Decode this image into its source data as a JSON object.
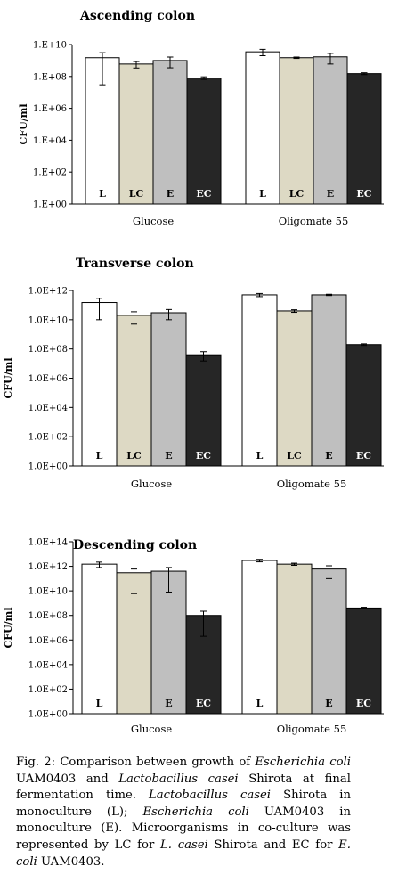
{
  "colors": {
    "L": "#ffffff",
    "LC": "#ddd9c4",
    "E": "#bfbfbf",
    "EC": "#262626",
    "edge": "#000000"
  },
  "chart_data": [
    {
      "type": "bar",
      "title": "Ascending colon",
      "ylabel": "CFU/ml",
      "yscale": "log",
      "ylim": [
        1,
        10000000000.0
      ],
      "yticks": [
        "1.E+00",
        "1.E+02",
        "1.E+04",
        "1.E+06",
        "1.E+08",
        "1.E+10"
      ],
      "categories": [
        "Glucose",
        "Oligomate 55"
      ],
      "series": [
        {
          "name": "L",
          "values": [
            1500000000.0,
            3500000000.0
          ],
          "err": [
            1600000000.0,
            1500000000.0
          ]
        },
        {
          "name": "LC",
          "values": [
            600000000.0,
            1500000000.0
          ],
          "err": [
            260000000.0,
            150000000.0
          ]
        },
        {
          "name": "E",
          "values": [
            1000000000.0,
            1700000000.0
          ],
          "err": [
            650000000.0,
            1100000000.0
          ]
        },
        {
          "name": "EC",
          "values": [
            80000000.0,
            150000000.0
          ],
          "err": [
            15000000.0,
            20000000.0
          ]
        }
      ]
    },
    {
      "type": "bar",
      "title": "Transverse colon",
      "ylabel": "CFU/ml",
      "yscale": "log",
      "ylim": [
        1,
        1000000000000.0
      ],
      "yticks": [
        "1.0E+00",
        "1.0E+02",
        "1.0E+04",
        "1.0E+06",
        "1.0E+08",
        "1.0E+10",
        "1.0E+12"
      ],
      "categories": [
        "Glucose",
        "Oligomate 55"
      ],
      "series": [
        {
          "name": "L",
          "values": [
            150000000000.0,
            500000000000.0
          ],
          "err": [
            140000000000.0,
            120000000000.0
          ]
        },
        {
          "name": "LC",
          "values": [
            20000000000.0,
            40000000000.0
          ],
          "err": [
            15000000000.0,
            8000000000.0
          ]
        },
        {
          "name": "E",
          "values": [
            30000000000.0,
            500000000000.0
          ],
          "err": [
            20000000000.0,
            50000000000.0
          ]
        },
        {
          "name": "EC",
          "values": [
            40000000.0,
            200000000.0
          ],
          "err": [
            25000000.0,
            25000000.0
          ]
        }
      ]
    },
    {
      "type": "bar",
      "title": "Descending colon",
      "ylabel": "CFU/ml",
      "yscale": "log",
      "ylim": [
        1,
        100000000000000.0
      ],
      "yticks": [
        "1.0E+00",
        "1.0E+02",
        "1.0E+04",
        "1.0E+06",
        "1.0E+08",
        "1.0E+10",
        "1.0E+12",
        "1.0E+14"
      ],
      "categories": [
        "Glucose",
        "Oligomate 55"
      ],
      "series": [
        {
          "name": "L",
          "values": [
            1500000000000.0,
            3000000000000.0
          ],
          "err": [
            700000000000.0,
            700000000000.0
          ]
        },
        {
          "name": "LC",
          "values": [
            300000000000.0,
            1500000000000.0
          ],
          "err": [
            300000000000.0,
            300000000000.0
          ]
        },
        {
          "name": "E",
          "values": [
            400000000000.0,
            600000000000.0
          ],
          "err": [
            400000000000.0,
            500000000000.0
          ]
        },
        {
          "name": "EC",
          "values": [
            100000000.0,
            400000000.0
          ],
          "err": [
            120000000.0,
            60000000.0
          ]
        }
      ]
    }
  ],
  "caption": {
    "fig_prefix": "Fig. 2: Comparison between growth of",
    "ecoli_name": "Escherichia coli",
    "after_ecoli": "UAM0403 and",
    "lcasei_name": "Lactobacillus casei",
    "after_lcasei": "Shirota at final fermentation time.",
    "lcasei_name_2": "Lactobacillus casei",
    "after_lcasei_2": "Shirota in monoculture (L);",
    "ecoli_name_2": "Escherichia coli",
    "after_ecoli_2": "UAM0403 in monoculture (E). Microorganisms in co-culture was represented by LC for",
    "lcasei_short": "L. casei",
    "after_lcasei_short": "Shirota and EC for",
    "ecoli_short": "E. coli",
    "end": "UAM0403."
  }
}
